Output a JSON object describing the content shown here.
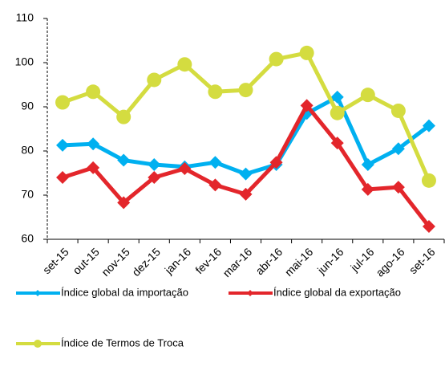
{
  "chart_data": {
    "type": "line",
    "categories": [
      "set-15",
      "out-15",
      "nov-15",
      "dez-15",
      "jan-16",
      "fev-16",
      "mar-16",
      "abr-16",
      "mai-16",
      "jun-16",
      "jul-16",
      "ago-16",
      "set-16"
    ],
    "series": [
      {
        "name": "Índice global da importação",
        "color": "#00b0f0",
        "marker": "diamond",
        "values": [
          81.3,
          81.6,
          77.9,
          76.9,
          76.4,
          77.4,
          74.8,
          76.9,
          88.5,
          92.2,
          76.9,
          80.5,
          85.7
        ]
      },
      {
        "name": "Índice global da exportação",
        "color": "#e3262b",
        "marker": "diamond",
        "values": [
          74.0,
          76.2,
          68.3,
          74.0,
          76.0,
          72.3,
          70.2,
          77.4,
          90.3,
          81.8,
          71.3,
          71.8,
          62.9
        ]
      },
      {
        "name": "Índice de Termos de Troca",
        "color": "#d4dc40",
        "marker": "circle",
        "values": [
          91.0,
          93.4,
          87.7,
          96.1,
          99.6,
          93.4,
          93.8,
          100.8,
          102.2,
          88.6,
          92.7,
          89.1,
          73.3
        ]
      }
    ],
    "ylim": [
      60,
      110
    ],
    "yticks": [
      60,
      70,
      80,
      90,
      100,
      110
    ],
    "grid": false
  }
}
